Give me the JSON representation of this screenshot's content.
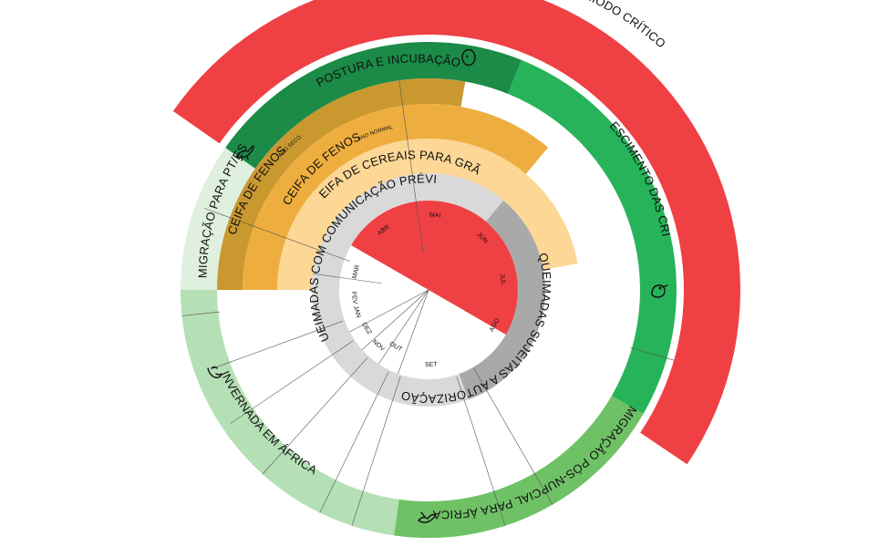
{
  "colors": {
    "critical_red": "#ef4044",
    "dark_green": "#1b8b47",
    "mid_green": "#27b35a",
    "light_green": "#6fc166",
    "pale_green": "#b5dfb5",
    "very_pale_green": "#dff0df",
    "ochre": "#c9982f",
    "orange": "#eeae3f",
    "pale_orange": "#fdd795",
    "light_gray": "#d9d9d9",
    "dark_gray": "#a9a9a9",
    "burn_red": "#ef4044"
  },
  "outer": {
    "periodo_critico": "PERÍODO CRÍTICO",
    "postura": "POSTURA E INCUBAÇÃO",
    "crescimento": "CRESCIMENTO DAS CRIAS",
    "migracao_pos": "MIGRAÇÃO PÓS-NUPCIAL PARA ÁFRICA",
    "invernada": "INVERNADA EM ÁFRICA",
    "migracao_pt": "MIGRAÇÃO PARA PT/ES"
  },
  "harvest": {
    "fenos_seco": "CEIFA DE FENOS",
    "fenos_seco_note": "ANO SECO",
    "fenos_normal": "CEIFA DE FENOS",
    "fenos_normal_note": "ANO NORMAL",
    "cereais": "CEIFA DE CEREAIS PARA GRÃO"
  },
  "burns": {
    "previa": "QUEIMADAS COM COMUNICAÇÃO PRÉVIA",
    "autorizacao": "QUEIMADAS SUJEITAS A AUTORIZAÇÃO"
  },
  "months": [
    "JAN",
    "FEV",
    "MAR",
    "ABR",
    "MAI",
    "JUN",
    "JUL",
    "AGO",
    "SET",
    "OUT",
    "NOV",
    "DEZ"
  ],
  "icons": {
    "egg": "egg-icon",
    "chick": "chick-icon",
    "bird_flying": "bird-flying-icon",
    "bird_landing": "bird-landing-icon",
    "bird_resting": "bird-resting-icon"
  }
}
